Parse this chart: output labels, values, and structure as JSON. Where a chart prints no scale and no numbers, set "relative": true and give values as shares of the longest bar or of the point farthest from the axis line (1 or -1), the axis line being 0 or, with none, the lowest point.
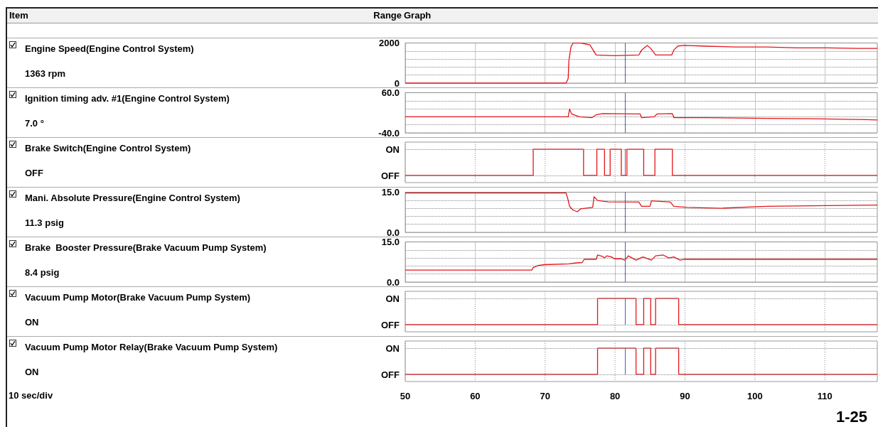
{
  "chart_data": [
    {
      "type": "line",
      "ylabel": "Engine Speed(Engine Control System)",
      "annotations": [
        "1363 rpm",
        "Item",
        "Range",
        "Graph"
      ],
      "marker": "none",
      "grid": true,
      "tick_labels": "y",
      "xlim": [
        50,
        117.5
      ],
      "xticks": [
        50,
        60,
        70,
        80,
        90,
        100,
        110
      ],
      "ylim": [
        0,
        2000
      ],
      "yticks": [
        0,
        {
          "value": 400,
          "label": null
        },
        {
          "value": 800,
          "label": null
        },
        {
          "value": 1200,
          "label": null
        },
        {
          "value": 1600,
          "label": null
        },
        2000
      ],
      "ref_lines": [
        {
          "axis": "x",
          "value": 81.4,
          "color": "#4a5fb5"
        }
      ],
      "series": [
        {
          "color": "#e3151a",
          "x": [
            50,
            73.0,
            73.3,
            73.4,
            73.7,
            74.0,
            75.1,
            76.4,
            77.3,
            79.9,
            83.4,
            83.8,
            84.6,
            85.1,
            85.8,
            88.1,
            88.4,
            89.0,
            89.9,
            93.0,
            97.3,
            101.7,
            106.0,
            110.3,
            114.7,
            117.5
          ],
          "values": [
            0,
            0,
            230,
            1130,
            1800,
            2000,
            2000,
            1910,
            1400,
            1370,
            1400,
            1650,
            1880,
            1730,
            1400,
            1400,
            1650,
            1850,
            1880,
            1840,
            1800,
            1800,
            1760,
            1760,
            1730,
            1730
          ]
        }
      ]
    },
    {
      "type": "line",
      "ylabel": "Ignition timing adv. #1(Engine Control System)",
      "annotations": [
        "7.0 °"
      ],
      "marker": "none",
      "grid": true,
      "tick_labels": "y",
      "xlim": [
        50,
        117.5
      ],
      "xticks": [
        50,
        60,
        70,
        80,
        90,
        100,
        110
      ],
      "ylim": [
        -40,
        60
      ],
      "yticks": [
        {
          "value": -40,
          "label": "-40.0"
        },
        {
          "value": -20,
          "label": null
        },
        {
          "value": 0,
          "label": null
        },
        {
          "value": 20,
          "label": null
        },
        {
          "value": 40,
          "label": null
        },
        {
          "value": 60,
          "label": "60.0"
        }
      ],
      "ref_lines": [
        {
          "axis": "x",
          "value": 81.4,
          "color": "#4a5fb5"
        }
      ],
      "series": [
        {
          "color": "#e3151a",
          "x": [
            50,
            73.3,
            73.5,
            73.8,
            74.9,
            76.7,
            77.3,
            78.2,
            83.6,
            83.8,
            85.6,
            86.0,
            88.2,
            88.4,
            93.0,
            101.7,
            108.2,
            116.0,
            117.5
          ],
          "values": [
            0,
            0,
            19,
            7,
            0,
            -2,
            5,
            8,
            7,
            -2,
            0,
            7,
            8,
            -2,
            -2,
            -4,
            -5,
            -7,
            -8
          ]
        }
      ]
    },
    {
      "type": "step",
      "ylabel": "Brake Switch(Engine Control System)",
      "annotations": [
        "OFF",
        "ON",
        "OFF"
      ],
      "relative": true,
      "marker": "none",
      "grid": true,
      "tick_labels": "y",
      "xlim": [
        50,
        117.5
      ],
      "xticks": [
        50,
        60,
        70,
        80,
        90,
        100,
        110
      ],
      "ref_lines": [
        {
          "axis": "x",
          "value": 81.4,
          "color": "#4a5fb5"
        }
      ],
      "series": [
        {
          "color": "#e3151a",
          "x": [
            50,
            68.3,
            75.5,
            77.4,
            78.5,
            79.3,
            80.9,
            81.7,
            84.1,
            85.7,
            88.2,
            117.5
          ],
          "values": [
            0,
            1,
            0,
            1,
            0,
            1,
            0,
            1,
            0,
            1,
            0,
            0
          ]
        }
      ]
    },
    {
      "type": "line",
      "ylabel": "Mani. Absolute Pressure(Engine Control System)",
      "annotations": [
        "11.3 psig"
      ],
      "marker": "none",
      "grid": true,
      "tick_labels": "y",
      "xlim": [
        50,
        117.5
      ],
      "xticks": [
        50,
        60,
        70,
        80,
        90,
        100,
        110
      ],
      "ylim": [
        0,
        15
      ],
      "yticks": [
        {
          "value": 0,
          "label": "0.0"
        },
        {
          "value": 3,
          "label": null
        },
        {
          "value": 6,
          "label": null
        },
        {
          "value": 9,
          "label": null
        },
        {
          "value": 12,
          "label": null
        },
        {
          "value": 15,
          "label": "15.0"
        }
      ],
      "ref_lines": [
        {
          "axis": "x",
          "value": 81.4,
          "color": "#4a5fb5"
        }
      ],
      "series": [
        {
          "color": "#e3151a",
          "x": [
            50,
            73.0,
            73.3,
            73.5,
            74.0,
            74.6,
            75.1,
            76.8,
            77.0,
            77.5,
            79.0,
            83.4,
            83.8,
            85.0,
            85.2,
            87.9,
            88.4,
            90.3,
            95.1,
            101.7,
            110.3,
            117.5
          ],
          "values": [
            14.7,
            14.7,
            12.0,
            9.7,
            8.3,
            7.7,
            8.8,
            9.3,
            13.3,
            11.9,
            11.4,
            11.3,
            9.7,
            9.7,
            11.8,
            11.3,
            9.7,
            9.3,
            9.0,
            9.7,
            10.0,
            10.2
          ]
        }
      ]
    },
    {
      "type": "line",
      "ylabel": "Brake  Booster Pressure(Brake Vacuum Pump System)",
      "annotations": [
        "8.4 psig"
      ],
      "marker": "none",
      "grid": true,
      "tick_labels": "y",
      "xlim": [
        50,
        117.5
      ],
      "xticks": [
        50,
        60,
        70,
        80,
        90,
        100,
        110
      ],
      "ylim": [
        0,
        15
      ],
      "yticks": [
        {
          "value": 0,
          "label": "0.0"
        },
        {
          "value": 3,
          "label": null
        },
        {
          "value": 6,
          "label": null
        },
        {
          "value": 9,
          "label": null
        },
        {
          "value": 12,
          "label": null
        },
        {
          "value": 15,
          "label": "15.0"
        }
      ],
      "ref_lines": [
        {
          "axis": "x",
          "value": 81.4,
          "color": "#4a5fb5"
        }
      ],
      "series": [
        {
          "color": "#e3151a",
          "x": [
            50,
            68.1,
            68.3,
            69.0,
            69.9,
            73.4,
            74.3,
            75.3,
            75.6,
            77.3,
            77.5,
            78.2,
            78.5,
            78.8,
            79.5,
            79.9,
            80.8,
            81.4,
            81.9,
            83.0,
            84.0,
            85.2,
            85.8,
            86.9,
            87.7,
            88.4,
            89.3,
            89.9,
            117.5
          ],
          "values": [
            4.5,
            4.5,
            5.4,
            6.2,
            6.5,
            6.8,
            7.1,
            7.3,
            8.5,
            8.5,
            10.1,
            9.6,
            9.0,
            9.8,
            9.4,
            8.7,
            8.7,
            8.2,
            9.8,
            8.2,
            9.4,
            8.2,
            9.8,
            10.1,
            9.0,
            9.4,
            8.2,
            8.5,
            8.5
          ]
        }
      ]
    },
    {
      "type": "step",
      "ylabel": "Vacuum Pump Motor(Brake Vacuum Pump System)",
      "annotations": [
        "ON",
        "ON",
        "OFF"
      ],
      "relative": true,
      "marker": "none",
      "grid": true,
      "tick_labels": "y",
      "xlim": [
        50,
        117.5
      ],
      "xticks": [
        50,
        60,
        70,
        80,
        90,
        100,
        110
      ],
      "ref_lines": [
        {
          "axis": "x",
          "value": 81.4,
          "color": "#4a5fb5"
        }
      ],
      "series": [
        {
          "color": "#e3151a",
          "x": [
            50,
            77.5,
            83.0,
            84.1,
            85.1,
            85.8,
            89.1,
            117.5
          ],
          "values": [
            0,
            1,
            0,
            1,
            0,
            1,
            0,
            0
          ]
        }
      ]
    },
    {
      "type": "step",
      "ylabel": "Vacuum Pump Motor Relay(Brake Vacuum Pump System)",
      "annotations": [
        "ON",
        "ON",
        "OFF",
        "10 sec/div",
        "1-25"
      ],
      "relative": true,
      "marker": "none",
      "grid": true,
      "xlim": [
        50,
        117.5
      ],
      "xticks": [
        50,
        60,
        70,
        80,
        90,
        100,
        110
      ],
      "ref_lines": [
        {
          "axis": "x",
          "value": 81.4,
          "color": "#4a5fb5"
        }
      ],
      "series": [
        {
          "color": "#e3151a",
          "x": [
            50,
            77.5,
            83.0,
            84.1,
            85.1,
            85.8,
            89.1,
            117.5
          ],
          "values": [
            0,
            1,
            0,
            1,
            0,
            1,
            0,
            0
          ]
        }
      ]
    }
  ]
}
